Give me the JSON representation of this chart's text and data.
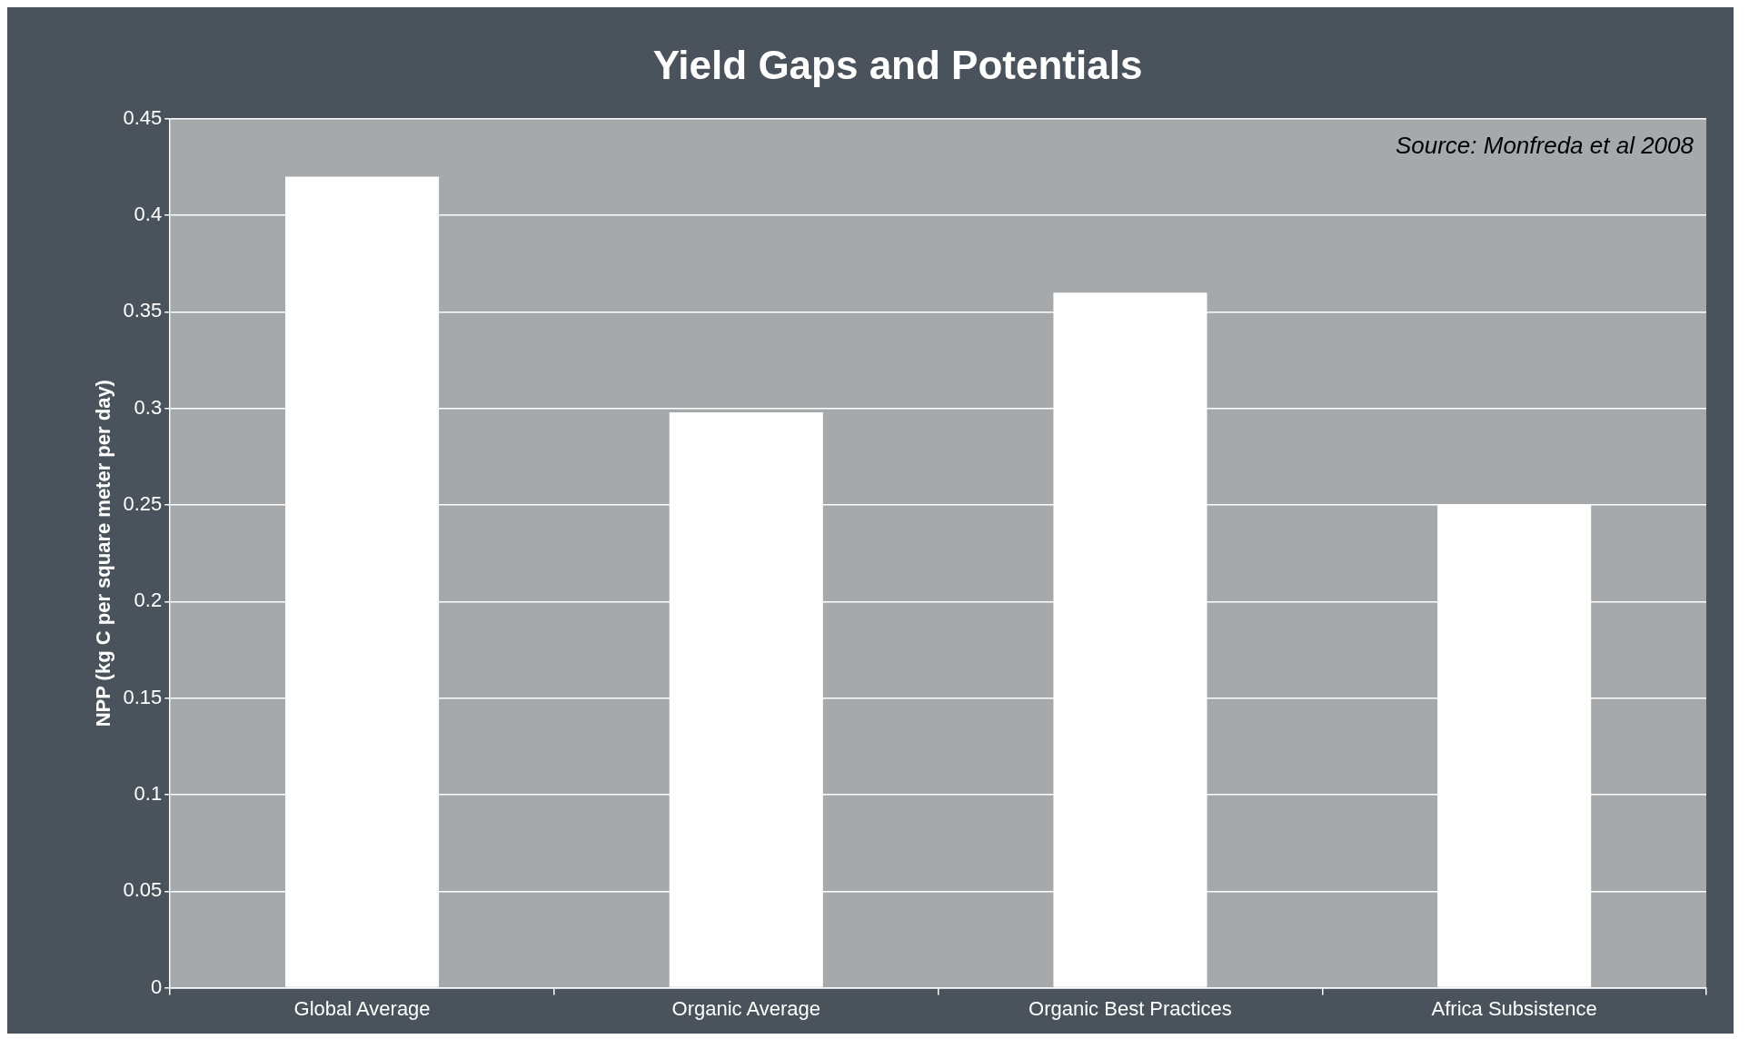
{
  "chart_data": {
    "type": "bar",
    "title": "Yield Gaps and Potentials",
    "ylabel": "NPP (kg C per square meter per day)",
    "categories": [
      "Global Average",
      "Organic Average",
      "Organic Best Practices",
      "Africa Subsistence"
    ],
    "values": [
      0.42,
      0.298,
      0.36,
      0.25
    ],
    "color": "#ffffff",
    "ylim": [
      0,
      0.45
    ],
    "yticks": [
      0,
      0.05,
      0.1,
      0.15,
      0.2,
      0.25,
      0.3,
      0.35,
      0.4,
      0.45
    ],
    "grid": "y",
    "legend": false,
    "annotations": [
      "Source: Monfreda et al 2008"
    ]
  }
}
